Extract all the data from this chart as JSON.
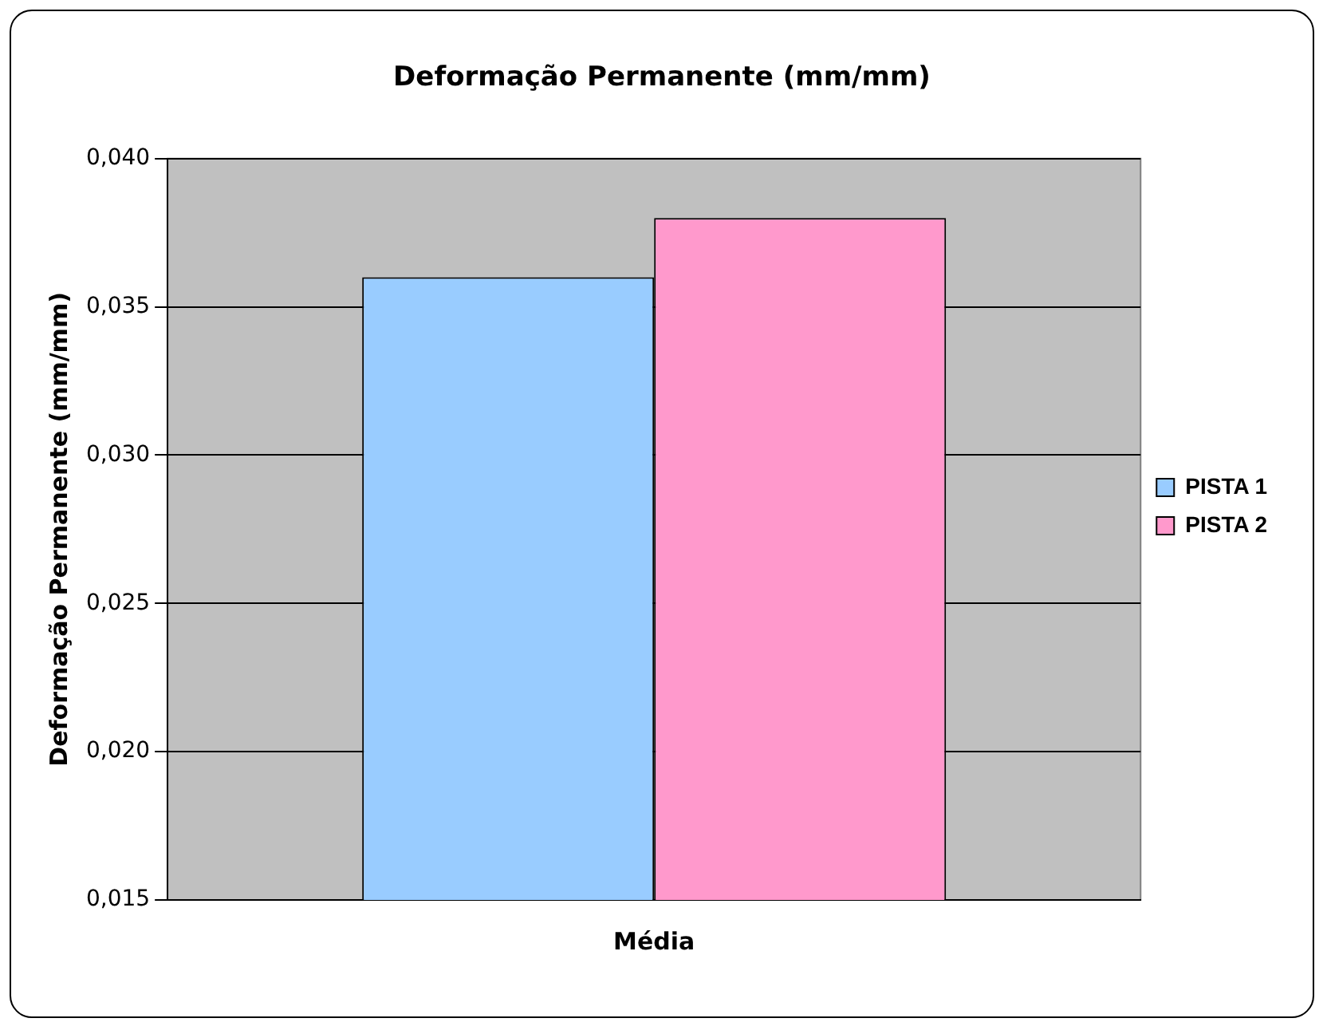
{
  "chart_data": {
    "type": "bar",
    "title": "Deformação Permanente (mm/mm)",
    "ylabel": "Deformação Permanente (mm/mm)",
    "categories": [
      "Média"
    ],
    "series": [
      {
        "name": "PISTA 1",
        "color": "#99ccff",
        "values": [
          0.036
        ]
      },
      {
        "name": "PISTA 2",
        "color": "#ff99cc",
        "values": [
          0.038
        ]
      }
    ],
    "ylim": [
      0.015,
      0.04
    ],
    "yticks": [
      {
        "value": 0.015,
        "label": "0,015"
      },
      {
        "value": 0.02,
        "label": "0,020"
      },
      {
        "value": 0.025,
        "label": "0,025"
      },
      {
        "value": 0.03,
        "label": "0,030"
      },
      {
        "value": 0.035,
        "label": "0,035"
      },
      {
        "value": 0.04,
        "label": "0,040"
      }
    ],
    "grid": "y",
    "legend": "right"
  }
}
